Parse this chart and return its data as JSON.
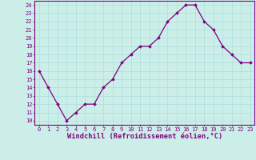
{
  "x": [
    0,
    1,
    2,
    3,
    4,
    5,
    6,
    7,
    8,
    9,
    10,
    11,
    12,
    13,
    14,
    15,
    16,
    17,
    18,
    19,
    20,
    21,
    22,
    23
  ],
  "y": [
    16,
    14,
    12,
    10,
    11,
    12,
    12,
    14,
    15,
    17,
    18,
    19,
    19,
    20,
    22,
    23,
    24,
    24,
    22,
    21,
    19,
    18,
    17,
    17
  ],
  "line_color": "#800080",
  "marker": "D",
  "markersize": 1.8,
  "linewidth": 0.9,
  "background_color": "#cceee8",
  "grid_color": "#aadddd",
  "xlabel": "Windchill (Refroidissement éolien,°C)",
  "xlim": [
    -0.5,
    23.5
  ],
  "ylim": [
    9.5,
    24.5
  ],
  "yticks": [
    10,
    11,
    12,
    13,
    14,
    15,
    16,
    17,
    18,
    19,
    20,
    21,
    22,
    23,
    24
  ],
  "xticks": [
    0,
    1,
    2,
    3,
    4,
    5,
    6,
    7,
    8,
    9,
    10,
    11,
    12,
    13,
    14,
    15,
    16,
    17,
    18,
    19,
    20,
    21,
    22,
    23
  ],
  "tick_fontsize": 5.0,
  "xlabel_fontsize": 6.2,
  "spine_color": "#800080"
}
